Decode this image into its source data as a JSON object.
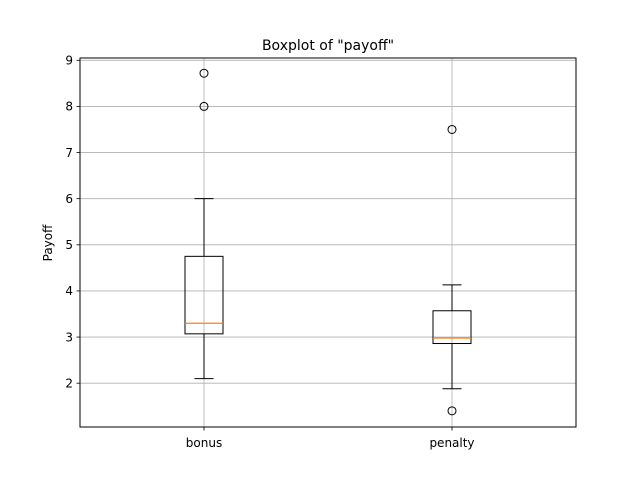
{
  "chart_data": {
    "type": "boxplot",
    "title": "Boxplot of \"payoff\"",
    "xlabel": "",
    "ylabel": "Payoff",
    "ylim": [
      1.05,
      9.05
    ],
    "yticks": [
      2,
      3,
      4,
      5,
      6,
      7,
      8,
      9
    ],
    "grid": true,
    "categories": [
      "bonus",
      "penalty"
    ],
    "boxes": [
      {
        "category": "bonus",
        "whisker_low": 2.1,
        "q1": 3.07,
        "median": 3.3,
        "q3": 4.75,
        "whisker_high": 6.0,
        "outliers": [
          8.0,
          8.72
        ]
      },
      {
        "category": "penalty",
        "whisker_low": 1.88,
        "q1": 2.86,
        "median": 2.98,
        "q3": 3.57,
        "whisker_high": 4.13,
        "outliers": [
          1.4,
          7.5
        ]
      }
    ],
    "colors": {
      "box": "#000000",
      "median": "#ff7f0e",
      "grid": "#b0b0b0",
      "outlier": "#000000"
    }
  }
}
